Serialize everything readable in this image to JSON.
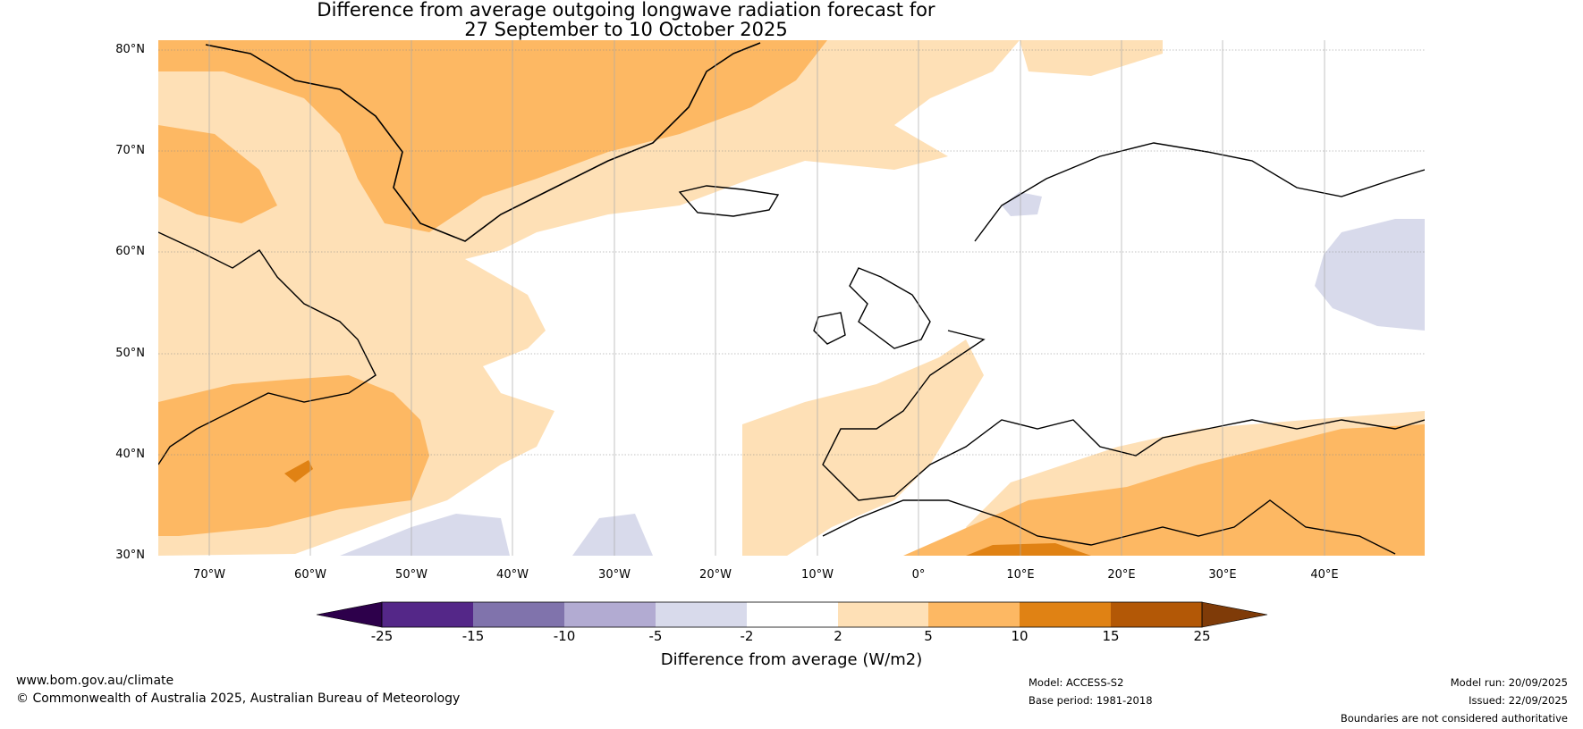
{
  "title": {
    "line1": "Difference from average outgoing longwave radiation forecast for",
    "line2": "27 September to 10 October 2025"
  },
  "axes": {
    "lat_labels": [
      "80°N",
      "70°N",
      "60°N",
      "50°N",
      "40°N",
      "30°N"
    ],
    "lon_labels": [
      "70°W",
      "60°W",
      "50°W",
      "40°W",
      "30°W",
      "20°W",
      "10°W",
      "0°",
      "10°E",
      "20°E",
      "30°E",
      "40°E"
    ]
  },
  "colorbar": {
    "title": "Difference from average (W/m2)",
    "ticks": [
      "-25",
      "-15",
      "-10",
      "-5",
      "-2",
      "2",
      "5",
      "10",
      "15",
      "25"
    ],
    "colors": [
      "#2d004b",
      "#542788",
      "#8073ac",
      "#b2abd2",
      "#d8daeb",
      "#ffffff",
      "#fee0b6",
      "#fdb863",
      "#e08214",
      "#b35806",
      "#7f3b08"
    ]
  },
  "footer": {
    "website": "www.bom.gov.au/climate",
    "copyright": "© Commonwealth of Australia 2025, Australian Bureau of Meteorology",
    "model": "Model: ACCESS-S2",
    "base_period": "Base period: 1981-2018",
    "model_run": "Model run: 20/09/2025",
    "issued": "Issued: 22/09/2025",
    "disclaimer": "Boundaries are not considered authoritative"
  }
}
